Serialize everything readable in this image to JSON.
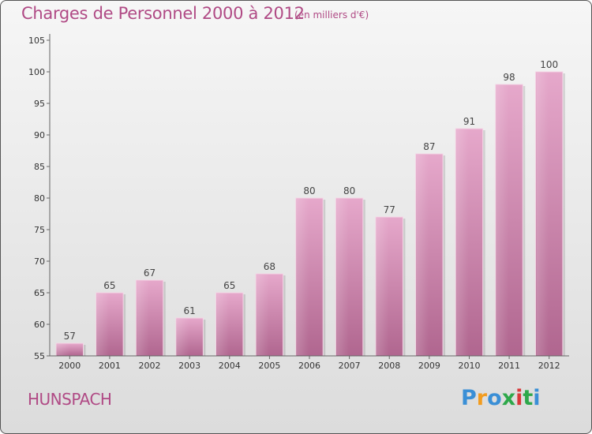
{
  "header": {
    "title": "Charges de Personnel 2000 à 2012",
    "subtitle": "(en milliers d'€)"
  },
  "footer": {
    "place": "HUNSPACH",
    "brand": "Proxiti",
    "brand_letters": [
      "P",
      "r",
      "o",
      "x",
      "i",
      "t",
      "i"
    ],
    "brand_colors": [
      "#3a8fd6",
      "#f29c1f",
      "#3a8fd6",
      "#2ea84a",
      "#d9383a",
      "#2ea84a",
      "#3a8fd6"
    ]
  },
  "chart_data": {
    "type": "bar",
    "categories": [
      "2000",
      "2001",
      "2002",
      "2003",
      "2004",
      "2005",
      "2006",
      "2007",
      "2008",
      "2009",
      "2010",
      "2011",
      "2012"
    ],
    "values": [
      57,
      65,
      67,
      61,
      65,
      68,
      80,
      80,
      77,
      87,
      91,
      98,
      100
    ],
    "title": "Charges de Personnel 2000 à 2012",
    "subtitle": "(en milliers d'€)",
    "xlabel": "",
    "ylabel": "",
    "ylim": [
      55,
      105
    ],
    "yticks": [
      55,
      60,
      65,
      70,
      75,
      80,
      85,
      90,
      95,
      100,
      105
    ],
    "grid": false,
    "bar_color": "#c8749f",
    "bar_color_light": "#e6a8cb",
    "data_labels": true
  }
}
